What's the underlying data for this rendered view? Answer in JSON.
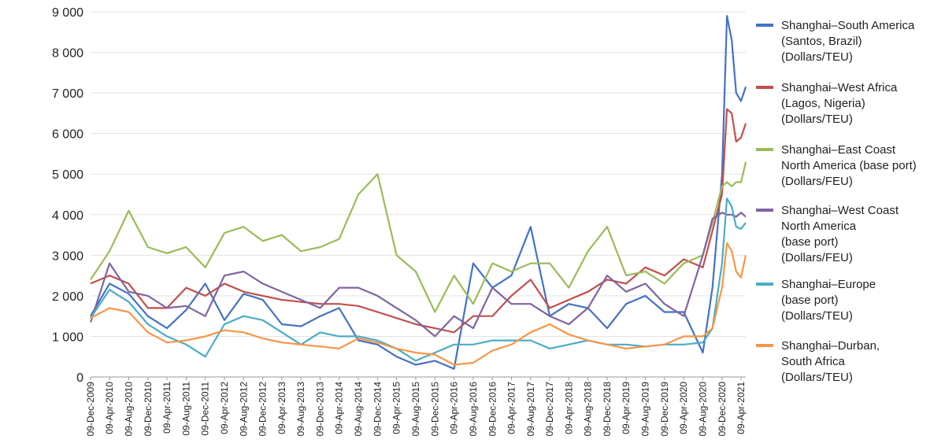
{
  "chart_data": {
    "type": "line",
    "ylim": [
      0,
      9000
    ],
    "yticks": [
      0,
      1000,
      2000,
      3000,
      4000,
      5000,
      6000,
      7000,
      8000,
      9000
    ],
    "ytick_labels": [
      "0",
      "1 000",
      "2 000",
      "3 000",
      "4 000",
      "5 000",
      "6 000",
      "7 000",
      "8 000",
      "9 000"
    ],
    "grid": true,
    "legend_position": "right",
    "x_start": "2009-12-09",
    "x_end": "2021-05-09",
    "x_tick_labels": [
      "09-Dec-2009",
      "09-Apr-2010",
      "09-Aug-2010",
      "09-Dec-2010",
      "09-Apr-2011",
      "09-Aug-2011",
      "09-Dec-2011",
      "09-Apr-2012",
      "09-Aug-2012",
      "09-Dec-2012",
      "09-Apr-2013",
      "09-Aug-2013",
      "09-Dec-2013",
      "09-Apr-2014",
      "09-Aug-2014",
      "09-Dec-2014",
      "09-Apr-2015",
      "09-Aug-2015",
      "09-Dec-2015",
      "09-Apr-2016",
      "09-Aug-2016",
      "09-Dec-2016",
      "09-Apr-2017",
      "09-Aug-2017",
      "09-Dec-2017",
      "09-Apr-2018",
      "09-Aug-2018",
      "09-Dec-2018",
      "09-Apr-2019",
      "09-Aug-2019",
      "09-Dec-2019",
      "09-Apr-2020",
      "09-Aug-2020",
      "09-Dec-2020",
      "09-Apr-2021"
    ],
    "x": [
      "2009-12-09",
      "2010-04-09",
      "2010-08-09",
      "2010-12-09",
      "2011-04-09",
      "2011-08-09",
      "2011-12-09",
      "2012-04-09",
      "2012-08-09",
      "2012-12-09",
      "2013-04-09",
      "2013-08-09",
      "2013-12-09",
      "2014-04-09",
      "2014-08-09",
      "2014-12-09",
      "2015-04-09",
      "2015-08-09",
      "2015-12-09",
      "2016-04-09",
      "2016-08-09",
      "2016-12-09",
      "2017-04-09",
      "2017-08-09",
      "2017-12-09",
      "2018-04-09",
      "2018-08-09",
      "2018-12-09",
      "2019-04-09",
      "2019-08-09",
      "2019-12-09",
      "2020-04-09",
      "2020-08-09",
      "2020-10-09",
      "2020-12-09",
      "2021-01-09",
      "2021-02-09",
      "2021-03-09",
      "2021-04-09",
      "2021-05-09"
    ],
    "series": [
      {
        "name_lines": [
          "Shanghai–South America",
          "(Santos, Brazil)",
          "(Dollars/TEU)"
        ],
        "color": "#4472c4",
        "values": [
          1500,
          2300,
          2050,
          1500,
          1200,
          1650,
          2300,
          1400,
          2050,
          1900,
          1300,
          1250,
          1500,
          1700,
          900,
          800,
          500,
          300,
          400,
          200,
          2800,
          2200,
          2500,
          3700,
          1500,
          1800,
          1700,
          1200,
          1800,
          2000,
          1600,
          1600,
          600,
          2200,
          5000,
          8900,
          8300,
          7000,
          6800,
          7150
        ]
      },
      {
        "name_lines": [
          "Shanghai–West Africa",
          "(Lagos, Nigeria)",
          "(Dollars/TEU)"
        ],
        "color": "#c0504d",
        "values": [
          2300,
          2500,
          2300,
          1700,
          1700,
          2200,
          2000,
          2300,
          2100,
          2000,
          1900,
          1850,
          1800,
          1800,
          1750,
          1600,
          1450,
          1300,
          1200,
          1100,
          1500,
          1500,
          2000,
          2400,
          1700,
          1900,
          2100,
          2400,
          2300,
          2700,
          2500,
          2900,
          2700,
          3600,
          4500,
          6600,
          6500,
          5800,
          5900,
          6250
        ]
      },
      {
        "name_lines": [
          "Shanghai–East Coast",
          "North America (base port)",
          "(Dollars/FEU)"
        ],
        "color": "#9bbb59",
        "values": [
          2400,
          3100,
          4100,
          3200,
          3050,
          3200,
          2700,
          3550,
          3700,
          3350,
          3500,
          3100,
          3200,
          3400,
          4500,
          5000,
          3000,
          2600,
          1600,
          2500,
          1800,
          2800,
          2600,
          2800,
          2800,
          2200,
          3100,
          3700,
          2500,
          2600,
          2300,
          2800,
          3000,
          3800,
          4700,
          4800,
          4700,
          4800,
          4800,
          5300
        ]
      },
      {
        "name_lines": [
          "Shanghai–West Coast",
          "North America",
          "(base port)",
          "(Dollars/FEU)"
        ],
        "color": "#8064a2",
        "values": [
          1350,
          2800,
          2100,
          2000,
          1700,
          1750,
          1500,
          2500,
          2600,
          2300,
          2100,
          1900,
          1700,
          2200,
          2200,
          2000,
          1700,
          1400,
          1000,
          1500,
          1200,
          2200,
          1800,
          1800,
          1500,
          1300,
          1700,
          2500,
          2100,
          2300,
          1800,
          1500,
          3000,
          3900,
          4050,
          4000,
          4000,
          3950,
          4050,
          3950
        ]
      },
      {
        "name_lines": [
          "Shanghai–Europe",
          "(base port)",
          "(Dollars/TEU)"
        ],
        "color": "#4bacc6",
        "values": [
          1450,
          2150,
          1850,
          1300,
          1000,
          800,
          500,
          1300,
          1500,
          1400,
          1100,
          800,
          1100,
          1000,
          1000,
          900,
          700,
          400,
          600,
          800,
          800,
          900,
          900,
          900,
          700,
          800,
          900,
          800,
          800,
          750,
          800,
          800,
          850,
          1200,
          2800,
          4400,
          4200,
          3700,
          3650,
          3800
        ]
      },
      {
        "name_lines": [
          "Shanghai–Durban,",
          "South Africa",
          "(Dollars/TEU)"
        ],
        "color": "#f79646",
        "values": [
          1450,
          1700,
          1600,
          1100,
          850,
          900,
          1000,
          1150,
          1100,
          950,
          850,
          800,
          750,
          700,
          950,
          850,
          700,
          600,
          550,
          300,
          350,
          650,
          800,
          1100,
          1300,
          1050,
          900,
          800,
          700,
          750,
          800,
          1000,
          1000,
          1200,
          2200,
          3300,
          3100,
          2600,
          2450,
          3000
        ]
      }
    ]
  }
}
